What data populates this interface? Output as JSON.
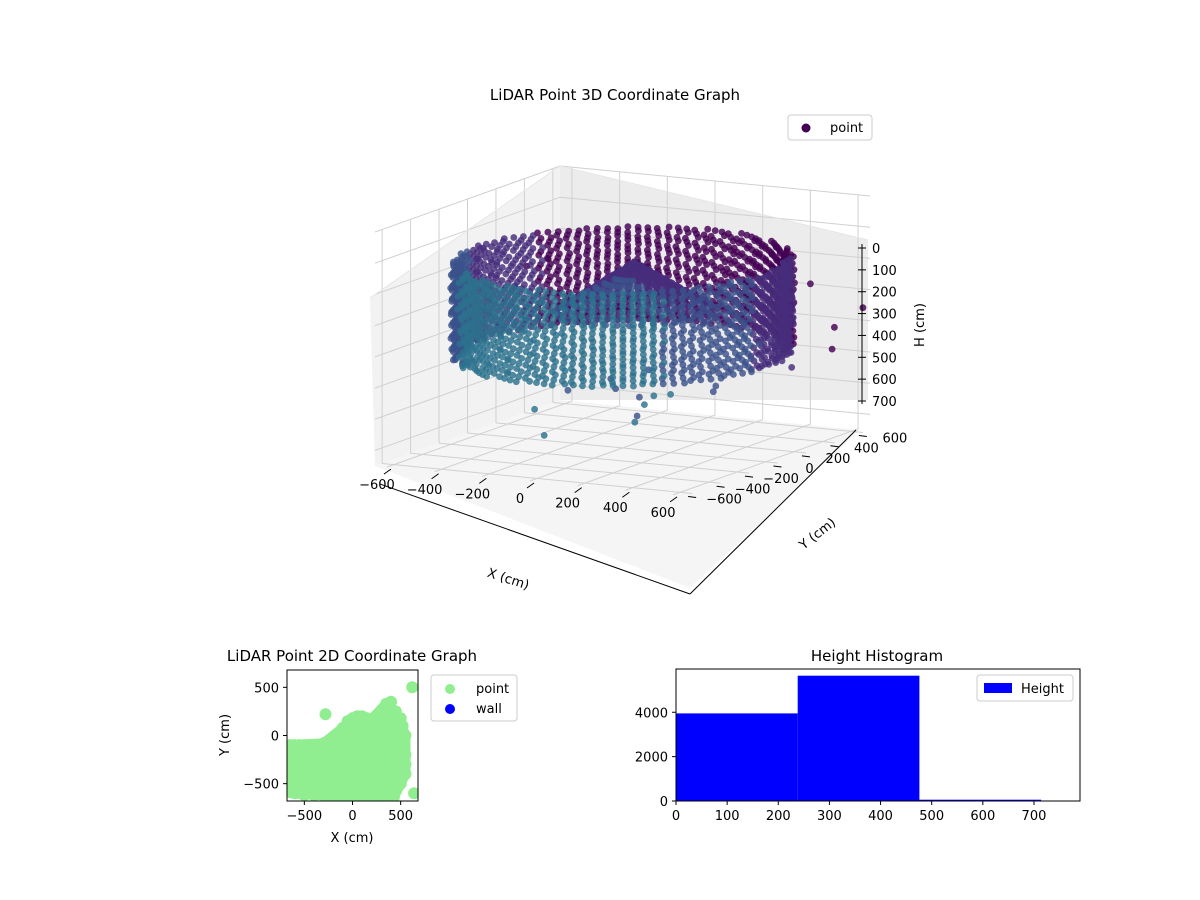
{
  "chart_data": [
    {
      "type": "scatter3d",
      "title": "LiDAR Point 3D Coordinate Graph",
      "xlabel": "X (cm)",
      "ylabel": "Y (cm)",
      "zlabel": "H (cm)",
      "x_ticks": [
        "−600",
        "−400",
        "−200",
        "0",
        "200",
        "400",
        "600"
      ],
      "y_ticks": [
        "−600",
        "−400",
        "−200",
        "0",
        "200",
        "400",
        "600"
      ],
      "z_ticks": [
        "0",
        "100",
        "200",
        "300",
        "400",
        "500",
        "600",
        "700"
      ],
      "xlim": [
        -650,
        650
      ],
      "ylim": [
        -650,
        650
      ],
      "zlim": [
        0,
        750
      ],
      "z_inverted": true,
      "legend": {
        "entries": [
          "point"
        ],
        "placement": "upper-right",
        "marker_color": "#440154"
      },
      "grid": true,
      "colormap": "viridis",
      "series": [
        {
          "name": "point",
          "structures": {
            "ring": {
              "center": [
                0,
                0
              ],
              "radius": 600,
              "z_top": 150,
              "z_bottom": 450
            },
            "dome": {
              "center": [
                50,
                0
              ],
              "radius": 300,
              "z_top": 150,
              "z_bottom": 450
            }
          },
          "outliers": [
            [
              -700,
              500,
              300
            ],
            [
              -700,
              150,
              480
            ],
            [
              -550,
              400,
              250
            ],
            [
              -600,
              250,
              320
            ],
            [
              -300,
              550,
              380
            ],
            [
              150,
              -300,
              500
            ],
            [
              250,
              -300,
              520
            ],
            [
              300,
              -400,
              560
            ],
            [
              350,
              -500,
              560
            ],
            [
              450,
              -600,
              480
            ],
            [
              500,
              -500,
              460
            ],
            [
              400,
              -450,
              480
            ],
            [
              500,
              -200,
              500
            ],
            [
              600,
              -350,
              450
            ],
            [
              650,
              600,
              350
            ],
            [
              700,
              300,
              430
            ],
            [
              650,
              400,
              380
            ],
            [
              650,
              100,
              460
            ],
            [
              400,
              650,
              300
            ],
            [
              0,
              -550,
              620
            ],
            [
              -100,
              -450,
              560
            ],
            [
              -50,
              -300,
              520
            ],
            [
              100,
              -250,
              480
            ],
            [
              200,
              -150,
              460
            ]
          ]
        }
      ]
    },
    {
      "type": "scatter",
      "title": "LiDAR Point 2D Coordinate Graph",
      "xlabel": "X (cm)",
      "ylabel": "Y (cm)",
      "x_ticks": [
        "−500",
        "0",
        "500"
      ],
      "y_ticks": [
        "500",
        "0",
        "−500"
      ],
      "xlim": [
        -680,
        680
      ],
      "ylim": [
        -680,
        680
      ],
      "legend": {
        "entries": [
          {
            "label": "point",
            "color": "#90ee90"
          },
          {
            "label": "wall",
            "color": "#0000ff"
          }
        ],
        "placement": "outside-right"
      },
      "series": [
        {
          "name": "point",
          "color": "#90ee90",
          "points": [
            [
              -650,
              -100
            ],
            [
              -600,
              -100
            ],
            [
              -550,
              -100
            ],
            [
              -500,
              -100
            ],
            [
              -450,
              -100
            ],
            [
              -400,
              -100
            ],
            [
              -350,
              -100
            ],
            [
              -300,
              -80
            ],
            [
              -250,
              -60
            ],
            [
              -200,
              -20
            ],
            [
              -150,
              20
            ],
            [
              -100,
              80
            ],
            [
              -50,
              150
            ],
            [
              0,
              180
            ],
            [
              50,
              200
            ],
            [
              100,
              200
            ],
            [
              150,
              180
            ],
            [
              200,
              170
            ],
            [
              250,
              200
            ],
            [
              300,
              260
            ],
            [
              350,
              330
            ],
            [
              400,
              350
            ],
            [
              450,
              250
            ],
            [
              500,
              180
            ],
            [
              520,
              100
            ],
            [
              550,
              0
            ],
            [
              -280,
              220
            ],
            [
              620,
              500
            ],
            [
              640,
              -600
            ],
            [
              -650,
              -250
            ],
            [
              -650,
              -400
            ],
            [
              -650,
              -550
            ],
            [
              -600,
              -600
            ],
            [
              -500,
              -620
            ],
            [
              -400,
              -620
            ],
            [
              -300,
              -620
            ],
            [
              -200,
              -620
            ],
            [
              -100,
              -640
            ],
            [
              0,
              -640
            ],
            [
              100,
              -620
            ],
            [
              200,
              -640
            ],
            [
              300,
              -600
            ],
            [
              400,
              -580
            ],
            [
              430,
              -640
            ],
            [
              500,
              -500
            ],
            [
              550,
              -400
            ],
            [
              550,
              -300
            ],
            [
              550,
              -200
            ],
            [
              540,
              -100
            ]
          ],
          "fill_polygon": [
            [
              -650,
              -100
            ],
            [
              -300,
              -80
            ],
            [
              -100,
              80
            ],
            [
              0,
              180
            ],
            [
              200,
              170
            ],
            [
              350,
              330
            ],
            [
              450,
              250
            ],
            [
              550,
              0
            ],
            [
              550,
              -400
            ],
            [
              430,
              -640
            ],
            [
              0,
              -640
            ],
            [
              -650,
              -600
            ]
          ]
        },
        {
          "name": "wall",
          "color": "#0000ff",
          "points": []
        }
      ]
    },
    {
      "type": "histogram",
      "title": "Height Histogram",
      "xlabel": "",
      "ylabel": "",
      "x_ticks": [
        "0",
        "100",
        "200",
        "300",
        "400",
        "500",
        "600",
        "700"
      ],
      "y_ticks": [
        "0",
        "2000",
        "4000"
      ],
      "xlim": [
        0,
        790
      ],
      "ylim": [
        0,
        5950
      ],
      "legend": {
        "entries": [
          "Height"
        ],
        "placement": "upper-right",
        "color": "#0000ff"
      },
      "bins": [
        {
          "start": 0,
          "end": 238,
          "count": 3950
        },
        {
          "start": 238,
          "end": 476,
          "count": 5650
        },
        {
          "start": 476,
          "end": 714,
          "count": 60
        }
      ],
      "series": [
        {
          "name": "Height",
          "color": "#0000ff"
        }
      ]
    }
  ]
}
